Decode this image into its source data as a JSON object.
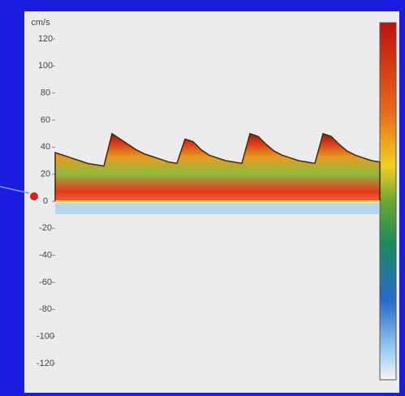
{
  "chart_data": {
    "type": "doppler",
    "y_label": "cm/s",
    "ylim": [
      -120,
      120
    ],
    "yticks": [
      120,
      100,
      80,
      60,
      40,
      20,
      0,
      -20,
      -40,
      -60,
      -80,
      -100,
      -120
    ],
    "categories": [
      null,
      null,
      null,
      null,
      null,
      null,
      null,
      null,
      null,
      null,
      null,
      null,
      null,
      null,
      null,
      null,
      null,
      null,
      null,
      null,
      null,
      null,
      null,
      null,
      null,
      null,
      null,
      null,
      null,
      null,
      null,
      null,
      null,
      null,
      null,
      null,
      null,
      null,
      null,
      null,
      null
    ],
    "values": [
      36,
      34,
      32,
      30,
      28,
      27,
      26,
      50,
      46,
      42,
      38,
      35,
      33,
      31,
      29,
      28,
      46,
      44,
      38,
      34,
      32,
      30,
      29,
      28,
      50,
      48,
      42,
      37,
      34,
      32,
      30,
      29,
      28,
      50,
      48,
      42,
      37,
      34,
      32,
      30,
      29
    ]
  }
}
